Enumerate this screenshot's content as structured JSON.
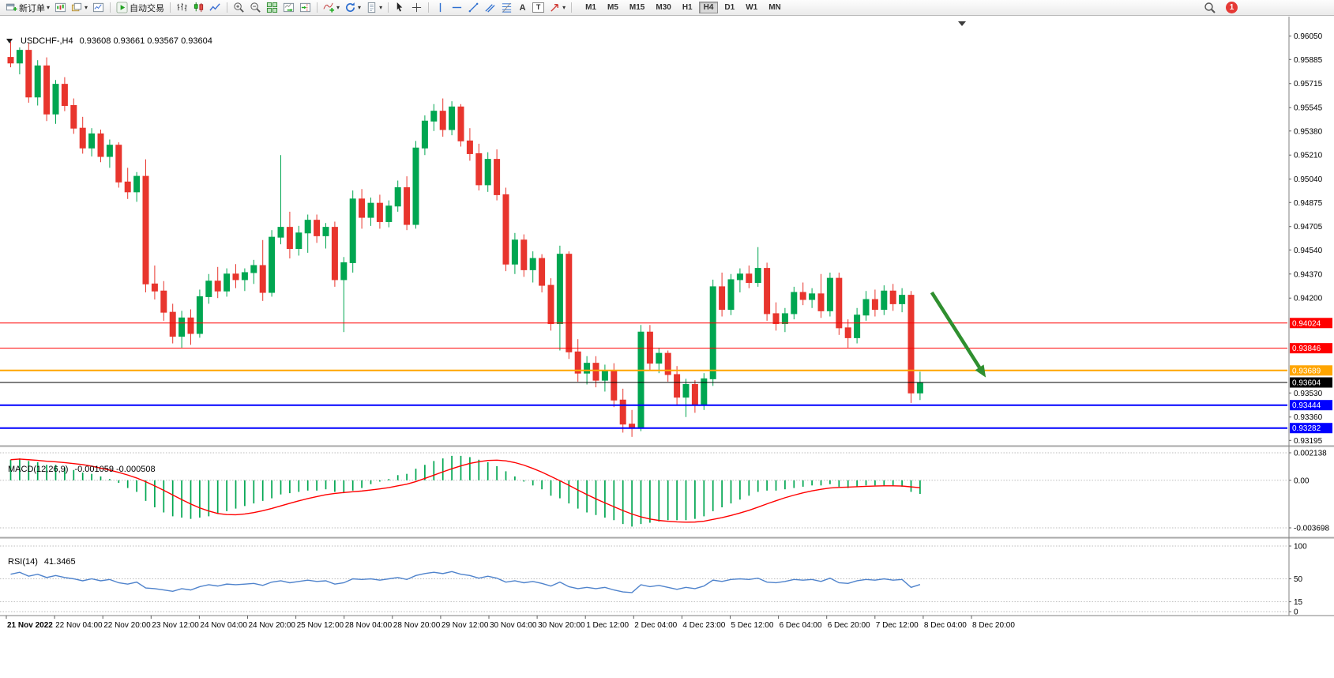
{
  "toolbar": {
    "new_order_label": "新订单",
    "autotrade_label": "自动交易",
    "timeframes": [
      "M1",
      "M5",
      "M15",
      "M30",
      "H1",
      "H4",
      "D1",
      "W1",
      "MN"
    ],
    "active_timeframe": "H4",
    "notification_count": "1",
    "icons": [
      "new-order-icon",
      "chart-window-icon",
      "profiles-icon",
      "new-chart-icon",
      "autotrade-play-icon",
      "bars-icon",
      "candlesticks-icon",
      "line-chart-icon",
      "zoom-in-icon",
      "zoom-out-icon",
      "tile-windows-icon",
      "auto-scroll-icon",
      "chart-shift-icon",
      "indicators-add-icon",
      "refresh-icon",
      "templates-icon",
      "cursor-icon",
      "crosshair-icon",
      "vertical-line-icon",
      "horizontal-line-icon",
      "trendline-icon",
      "channel-icon",
      "fibonacci-icon",
      "text-icon",
      "text-label-icon",
      "arrows-icon",
      "search-icon"
    ]
  },
  "chart_header": {
    "symbol_timeframe": "USDCHF-,H4",
    "ohlc": "0.93608 0.93661 0.93567 0.93604"
  },
  "indicators": {
    "macd_label": "MACD(12,26,9)",
    "macd_values": "-0.001059 -0.000508",
    "rsi_label": "RSI(14)",
    "rsi_value": "41.3465"
  },
  "chart_data": {
    "type": "candlestick",
    "symbol": "USDCHF-",
    "timeframe": "H4",
    "title": "USDCHF-,H4",
    "current_ohlc": {
      "open": 0.93608,
      "high": 0.93661,
      "low": 0.93567,
      "close": 0.93604
    },
    "y_range": {
      "top": 0.9616,
      "bottom": 0.9318
    },
    "candles": [
      [
        0.959,
        0.9601,
        0.9583,
        0.9586
      ],
      [
        0.9586,
        0.9597,
        0.9578,
        0.9595
      ],
      [
        0.9595,
        0.96,
        0.9558,
        0.9562
      ],
      [
        0.9562,
        0.9588,
        0.9556,
        0.9584
      ],
      [
        0.9584,
        0.959,
        0.9545,
        0.955
      ],
      [
        0.955,
        0.9574,
        0.9543,
        0.9571
      ],
      [
        0.9571,
        0.9576,
        0.9552,
        0.9556
      ],
      [
        0.9556,
        0.9561,
        0.9536,
        0.954
      ],
      [
        0.954,
        0.9548,
        0.9522,
        0.9526
      ],
      [
        0.9526,
        0.954,
        0.952,
        0.9536
      ],
      [
        0.9536,
        0.9539,
        0.9516,
        0.952
      ],
      [
        0.952,
        0.9532,
        0.9512,
        0.9528
      ],
      [
        0.9528,
        0.953,
        0.9498,
        0.9502
      ],
      [
        0.9502,
        0.9512,
        0.949,
        0.9495
      ],
      [
        0.9495,
        0.9509,
        0.9488,
        0.9506
      ],
      [
        0.9506,
        0.9518,
        0.9424,
        0.943
      ],
      [
        0.943,
        0.9443,
        0.9419,
        0.9425
      ],
      [
        0.9425,
        0.9432,
        0.9404,
        0.941
      ],
      [
        0.941,
        0.9416,
        0.9388,
        0.9393
      ],
      [
        0.9393,
        0.9411,
        0.9385,
        0.9406
      ],
      [
        0.9406,
        0.9412,
        0.9387,
        0.9395
      ],
      [
        0.9395,
        0.9426,
        0.9392,
        0.9421
      ],
      [
        0.9421,
        0.9437,
        0.9416,
        0.9432
      ],
      [
        0.9432,
        0.9442,
        0.942,
        0.9425
      ],
      [
        0.9425,
        0.9441,
        0.9421,
        0.9437
      ],
      [
        0.9437,
        0.9444,
        0.9427,
        0.9433
      ],
      [
        0.9433,
        0.9441,
        0.9425,
        0.9438
      ],
      [
        0.9438,
        0.9447,
        0.943,
        0.9443
      ],
      [
        0.9443,
        0.9461,
        0.9418,
        0.9424
      ],
      [
        0.9424,
        0.9468,
        0.9421,
        0.9463
      ],
      [
        0.9463,
        0.9521,
        0.9458,
        0.947
      ],
      [
        0.947,
        0.9481,
        0.9448,
        0.9455
      ],
      [
        0.9455,
        0.9471,
        0.945,
        0.9466
      ],
      [
        0.9466,
        0.9479,
        0.9452,
        0.9475
      ],
      [
        0.9475,
        0.9479,
        0.9459,
        0.9464
      ],
      [
        0.9464,
        0.9473,
        0.9455,
        0.947
      ],
      [
        0.947,
        0.9474,
        0.9428,
        0.9433
      ],
      [
        0.9433,
        0.9449,
        0.9396,
        0.9445
      ],
      [
        0.9445,
        0.9496,
        0.9438,
        0.949
      ],
      [
        0.949,
        0.9497,
        0.9469,
        0.9477
      ],
      [
        0.9477,
        0.9491,
        0.9471,
        0.9487
      ],
      [
        0.9487,
        0.9493,
        0.9469,
        0.9474
      ],
      [
        0.9474,
        0.9489,
        0.947,
        0.9485
      ],
      [
        0.9485,
        0.9503,
        0.9481,
        0.9498
      ],
      [
        0.9498,
        0.9506,
        0.9468,
        0.9472
      ],
      [
        0.9472,
        0.9531,
        0.9469,
        0.9526
      ],
      [
        0.9526,
        0.9549,
        0.9521,
        0.9545
      ],
      [
        0.9545,
        0.9557,
        0.9538,
        0.9552
      ],
      [
        0.9552,
        0.9561,
        0.9534,
        0.9539
      ],
      [
        0.9539,
        0.9559,
        0.9535,
        0.9555
      ],
      [
        0.9555,
        0.9557,
        0.9527,
        0.9531
      ],
      [
        0.9531,
        0.954,
        0.9517,
        0.9522
      ],
      [
        0.9522,
        0.9529,
        0.9496,
        0.95
      ],
      [
        0.95,
        0.9523,
        0.9495,
        0.9518
      ],
      [
        0.9518,
        0.9525,
        0.9489,
        0.9493
      ],
      [
        0.9493,
        0.9498,
        0.9439,
        0.9444
      ],
      [
        0.9444,
        0.9466,
        0.9437,
        0.9461
      ],
      [
        0.9461,
        0.9465,
        0.9435,
        0.944
      ],
      [
        0.944,
        0.9453,
        0.9431,
        0.9448
      ],
      [
        0.9448,
        0.9451,
        0.9424,
        0.9429
      ],
      [
        0.9429,
        0.9434,
        0.9397,
        0.9402
      ],
      [
        0.9402,
        0.9457,
        0.9383,
        0.9451
      ],
      [
        0.9451,
        0.9453,
        0.9377,
        0.9382
      ],
      [
        0.9382,
        0.9391,
        0.9361,
        0.9367
      ],
      [
        0.9367,
        0.9379,
        0.9359,
        0.9374
      ],
      [
        0.9374,
        0.9379,
        0.9357,
        0.9362
      ],
      [
        0.9362,
        0.9373,
        0.9354,
        0.9369
      ],
      [
        0.9369,
        0.9374,
        0.9343,
        0.9348
      ],
      [
        0.9348,
        0.9356,
        0.9325,
        0.9331
      ],
      [
        0.9331,
        0.9341,
        0.9322,
        0.9328
      ],
      [
        0.9328,
        0.9401,
        0.9326,
        0.9396
      ],
      [
        0.9396,
        0.9401,
        0.9369,
        0.9374
      ],
      [
        0.9374,
        0.9385,
        0.9367,
        0.9381
      ],
      [
        0.9381,
        0.9383,
        0.9361,
        0.9366
      ],
      [
        0.9366,
        0.9372,
        0.9344,
        0.935
      ],
      [
        0.935,
        0.9363,
        0.9336,
        0.9359
      ],
      [
        0.9359,
        0.9362,
        0.9339,
        0.9345
      ],
      [
        0.9345,
        0.9367,
        0.9341,
        0.9363
      ],
      [
        0.9363,
        0.9433,
        0.9358,
        0.9428
      ],
      [
        0.9428,
        0.9438,
        0.9407,
        0.9412
      ],
      [
        0.9412,
        0.9437,
        0.9408,
        0.9433
      ],
      [
        0.9433,
        0.9441,
        0.9424,
        0.9437
      ],
      [
        0.9437,
        0.9443,
        0.9427,
        0.9431
      ],
      [
        0.9431,
        0.9456,
        0.9428,
        0.9441
      ],
      [
        0.9441,
        0.9445,
        0.9404,
        0.9409
      ],
      [
        0.9409,
        0.9417,
        0.9397,
        0.9402
      ],
      [
        0.9402,
        0.9413,
        0.9396,
        0.9409
      ],
      [
        0.9409,
        0.9428,
        0.9405,
        0.9424
      ],
      [
        0.9424,
        0.9431,
        0.9415,
        0.9419
      ],
      [
        0.9419,
        0.9427,
        0.9413,
        0.9423
      ],
      [
        0.9423,
        0.9437,
        0.9406,
        0.9411
      ],
      [
        0.9411,
        0.9438,
        0.9407,
        0.9434
      ],
      [
        0.9434,
        0.9438,
        0.9394,
        0.9399
      ],
      [
        0.9399,
        0.9405,
        0.9385,
        0.9392
      ],
      [
        0.9392,
        0.9413,
        0.9388,
        0.9408
      ],
      [
        0.9408,
        0.9425,
        0.9404,
        0.9419
      ],
      [
        0.9419,
        0.9426,
        0.9407,
        0.9412
      ],
      [
        0.9412,
        0.9429,
        0.9408,
        0.9425
      ],
      [
        0.9425,
        0.943,
        0.9411,
        0.9416
      ],
      [
        0.9416,
        0.9427,
        0.941,
        0.9422
      ],
      [
        0.9422,
        0.9425,
        0.9346,
        0.9353
      ],
      [
        0.9353,
        0.9368,
        0.9348,
        0.93604
      ]
    ],
    "levels": [
      {
        "price": 0.94024,
        "label": "0.94024",
        "color": "#FF0000",
        "width": 1
      },
      {
        "price": 0.93846,
        "label": "0.93846",
        "color": "#FF0000",
        "width": 1
      },
      {
        "price": 0.93689,
        "label": "0.93689",
        "color": "#FFA500",
        "width": 2
      },
      {
        "price": 0.93604,
        "label": "0.93604",
        "color": "#000000",
        "width": 1
      },
      {
        "price": 0.93444,
        "label": "0.93444",
        "color": "#0000FF",
        "width": 2
      },
      {
        "price": 0.93282,
        "label": "0.93282",
        "color": "#0000FF",
        "width": 2
      }
    ],
    "price_axis": [
      "0.96050",
      "0.95885",
      "0.95715",
      "0.95545",
      "0.95380",
      "0.95210",
      "0.95040",
      "0.94875",
      "0.94705",
      "0.94540",
      "0.94370",
      "0.94200",
      "0.93530",
      "0.93360",
      "0.93195"
    ],
    "time_axis": [
      "21 Nov 2022",
      "22 Nov 04:00",
      "22 Nov 20:00",
      "23 Nov 12:00",
      "24 Nov 04:00",
      "24 Nov 20:00",
      "25 Nov 12:00",
      "28 Nov 04:00",
      "28 Nov 20:00",
      "29 Nov 12:00",
      "30 Nov 04:00",
      "30 Nov 20:00",
      "1 Dec 12:00",
      "2 Dec 04:00",
      "4 Dec 23:00",
      "5 Dec 12:00",
      "6 Dec 04:00",
      "6 Dec 20:00",
      "7 Dec 12:00",
      "8 Dec 04:00",
      "8 Dec 20:00"
    ],
    "macd": {
      "label": "MACD(12,26,9)",
      "main_value": -0.001059,
      "signal_value": -0.000508,
      "scale": [
        "0.002138",
        "0.00",
        "-0.003698"
      ],
      "histogram": [
        0.0016,
        0.0017,
        0.0015,
        0.0014,
        0.0012,
        0.0012,
        0.001,
        0.0008,
        0.0006,
        0.0005,
        0.0003,
        0.0001,
        -0.0002,
        -0.0006,
        -0.0009,
        -0.0016,
        -0.0021,
        -0.0025,
        -0.0028,
        -0.0029,
        -0.003,
        -0.0029,
        -0.0028,
        -0.0026,
        -0.0024,
        -0.0022,
        -0.002,
        -0.0018,
        -0.0016,
        -0.0014,
        -0.0011,
        -0.001,
        -0.0009,
        -0.0008,
        -0.0008,
        -0.0007,
        -0.0009,
        -0.001,
        -0.0008,
        -0.0006,
        -0.0003,
        -0.0001,
        0.0001,
        0.0004,
        0.0005,
        0.0009,
        0.0012,
        0.0015,
        0.0017,
        0.0019,
        0.0019,
        0.0018,
        0.0016,
        0.0014,
        0.0011,
        0.0007,
        0.0003,
        -0.0001,
        -0.0004,
        -0.0007,
        -0.0012,
        -0.0014,
        -0.0018,
        -0.0022,
        -0.0025,
        -0.0027,
        -0.0029,
        -0.0031,
        -0.0034,
        -0.0036,
        -0.0034,
        -0.0033,
        -0.0032,
        -0.0031,
        -0.0031,
        -0.0031,
        -0.003,
        -0.0028,
        -0.0024,
        -0.0021,
        -0.0018,
        -0.0015,
        -0.0012,
        -0.0009,
        -0.0008,
        -0.0008,
        -0.0007,
        -0.0006,
        -0.0005,
        -0.0004,
        -0.0004,
        -0.0003,
        -0.0005,
        -0.0006,
        -0.0005,
        -0.0004,
        -0.0004,
        -0.0004,
        -0.0004,
        -0.0005,
        -0.0009,
        -0.00106
      ]
    },
    "rsi": {
      "label": "RSI(14)",
      "current": 41.3465,
      "scale": [
        "100",
        "50",
        "15",
        "0"
      ],
      "values": [
        57,
        60,
        54,
        57,
        52,
        55,
        52,
        50,
        47,
        50,
        47,
        49,
        44,
        42,
        45,
        36,
        35,
        33,
        31,
        35,
        33,
        38,
        41,
        39,
        42,
        41,
        42,
        43,
        40,
        45,
        47,
        44,
        46,
        48,
        46,
        47,
        42,
        44,
        50,
        49,
        50,
        48,
        50,
        52,
        49,
        55,
        58,
        60,
        58,
        61,
        57,
        55,
        51,
        54,
        51,
        45,
        47,
        44,
        46,
        43,
        39,
        45,
        38,
        35,
        37,
        35,
        37,
        33,
        30,
        29,
        41,
        38,
        40,
        37,
        34,
        37,
        35,
        39,
        48,
        46,
        49,
        50,
        49,
        51,
        45,
        44,
        46,
        49,
        48,
        49,
        46,
        51,
        44,
        43,
        47,
        49,
        48,
        50,
        48,
        49,
        37,
        41.35
      ]
    },
    "arrow": {
      "from_index": 102.3,
      "from_price": 0.9424,
      "to_index": 108.3,
      "to_price": 0.9364
    },
    "colors": {
      "up": "#00A651",
      "down": "#E8352D",
      "macd_histogram": "#00A651",
      "macd_signal": "#FF0000",
      "rsi_line": "#4F83CC",
      "arrow": "#2F8F2F",
      "axis_text": "#000000"
    }
  }
}
